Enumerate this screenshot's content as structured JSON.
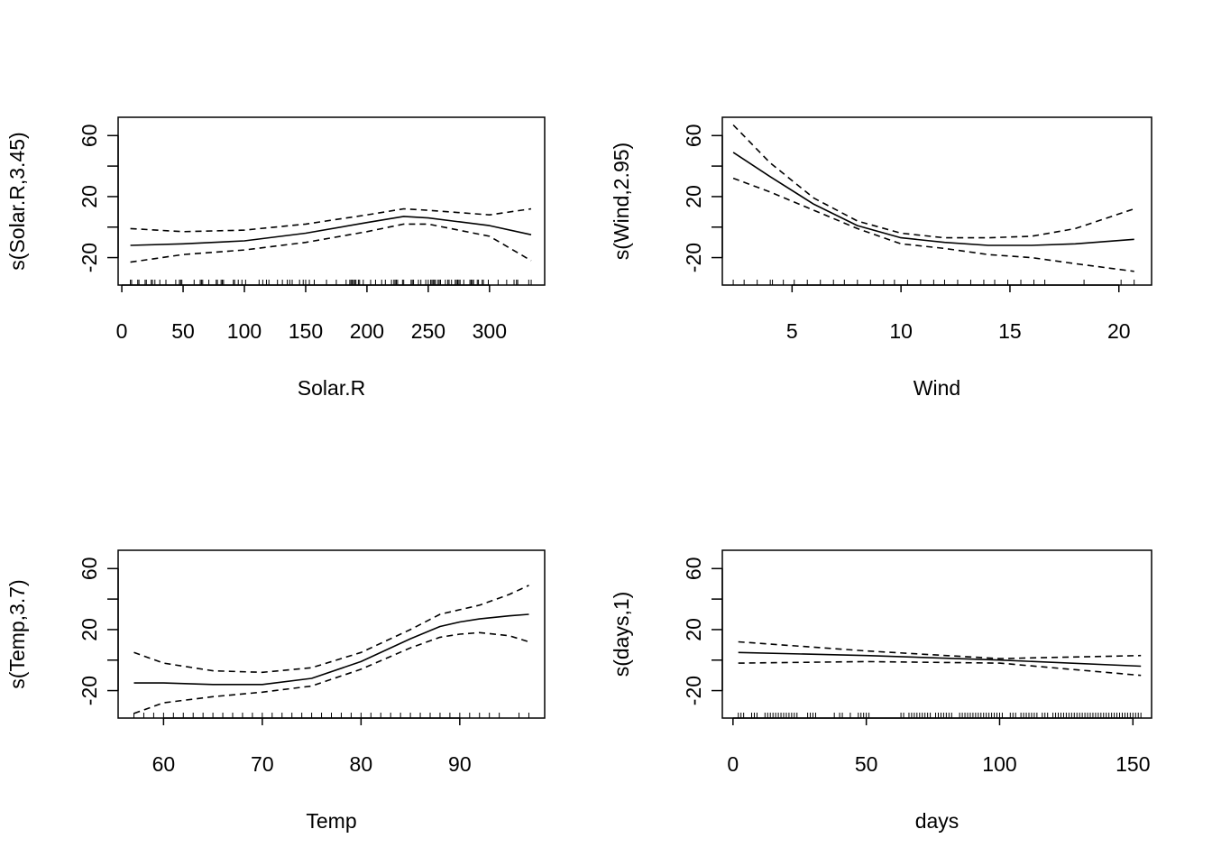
{
  "figure": {
    "background": "#ffffff",
    "line_color": "#000000"
  },
  "chart_data": [
    {
      "type": "line",
      "xlabel": "Solar.R",
      "ylabel": "s(Solar.R,3.45)",
      "xlim": [
        -3,
        345
      ],
      "ylim": [
        -38,
        72
      ],
      "xticks": [
        0,
        50,
        100,
        150,
        200,
        250,
        300
      ],
      "yticks": [
        -20,
        20,
        60
      ],
      "grid": false,
      "series": [
        {
          "style": "solid",
          "x": [
            7,
            50,
            100,
            150,
            200,
            230,
            250,
            300,
            334
          ],
          "y": [
            -12,
            -11,
            -9,
            -4,
            3,
            7,
            6,
            1,
            -5
          ]
        },
        {
          "style": "dashed",
          "x": [
            7,
            50,
            100,
            150,
            200,
            230,
            250,
            300,
            334
          ],
          "y": [
            -1,
            -3,
            -2,
            2,
            8,
            12,
            11,
            8,
            12
          ]
        },
        {
          "style": "dashed",
          "x": [
            7,
            50,
            100,
            150,
            200,
            230,
            250,
            300,
            334
          ],
          "y": [
            -23,
            -18,
            -15,
            -10,
            -3,
            2,
            2,
            -6,
            -22
          ]
        }
      ],
      "rug": [
        7,
        8,
        13,
        14,
        19,
        20,
        24,
        25,
        27,
        31,
        36,
        44,
        47,
        48,
        49,
        59,
        64,
        65,
        66,
        71,
        77,
        78,
        81,
        82,
        83,
        91,
        92,
        95,
        98,
        101,
        112,
        115,
        118,
        120,
        127,
        131,
        135,
        137,
        139,
        145,
        148,
        150,
        153,
        157,
        167,
        175,
        183,
        186,
        187,
        188,
        189,
        190,
        191,
        193,
        194,
        197,
        203,
        207,
        212,
        215,
        220,
        222,
        223,
        224,
        225,
        229,
        230,
        236,
        237,
        238,
        242,
        244,
        248,
        250,
        252,
        253,
        254,
        255,
        256,
        258,
        259,
        260,
        264,
        266,
        267,
        269,
        272,
        273,
        274,
        275,
        276,
        279,
        284,
        285,
        286,
        287,
        290,
        291,
        294,
        295,
        299,
        307,
        314,
        320,
        322,
        323,
        332,
        334
      ]
    },
    {
      "type": "line",
      "xlabel": "Wind",
      "ylabel": "s(Wind,2.95)",
      "xlim": [
        1.8,
        21.5
      ],
      "ylim": [
        -38,
        72
      ],
      "xticks": [
        5,
        10,
        15,
        20
      ],
      "yticks": [
        -20,
        20,
        60
      ],
      "grid": false,
      "series": [
        {
          "style": "solid",
          "x": [
            2.3,
            4,
            6,
            8,
            10,
            12,
            14,
            16,
            18,
            20.7
          ],
          "y": [
            49,
            33,
            15,
            1,
            -7,
            -10,
            -12,
            -12,
            -11,
            -8
          ]
        },
        {
          "style": "dashed",
          "x": [
            2.3,
            4,
            6,
            8,
            10,
            12,
            14,
            16,
            18,
            20.7
          ],
          "y": [
            67,
            42,
            19,
            4,
            -4,
            -7,
            -7,
            -6,
            -1,
            12
          ]
        },
        {
          "style": "dashed",
          "x": [
            2.3,
            4,
            6,
            8,
            10,
            12,
            14,
            16,
            18,
            20.7
          ],
          "y": [
            32,
            23,
            11,
            -1,
            -11,
            -14,
            -18,
            -20,
            -24,
            -29
          ]
        }
      ],
      "rug": [
        2.3,
        2.8,
        3.4,
        4.0,
        4.1,
        4.6,
        5.1,
        5.7,
        6.3,
        6.9,
        7.4,
        8.0,
        8.6,
        9.2,
        9.7,
        10.3,
        10.9,
        11.5,
        12.0,
        12.6,
        13.2,
        13.8,
        14.3,
        14.9,
        15.5,
        16.1,
        16.6,
        18.4,
        20.1,
        20.7
      ]
    },
    {
      "type": "line",
      "xlabel": "Temp",
      "ylabel": "s(Temp,3.7)",
      "xlim": [
        55.4,
        98.6
      ],
      "ylim": [
        -38,
        72
      ],
      "xticks": [
        60,
        70,
        80,
        90
      ],
      "yticks": [
        -20,
        20,
        60
      ],
      "grid": false,
      "series": [
        {
          "style": "solid",
          "x": [
            57,
            60,
            65,
            70,
            75,
            80,
            85,
            88,
            90,
            92,
            95,
            97
          ],
          "y": [
            -15,
            -15,
            -16,
            -16,
            -12,
            -1,
            14,
            22,
            25,
            27,
            29,
            30
          ]
        },
        {
          "style": "dashed",
          "x": [
            57,
            60,
            65,
            70,
            75,
            80,
            85,
            88,
            90,
            92,
            95,
            97
          ],
          "y": [
            5,
            -2,
            -7,
            -8,
            -5,
            5,
            20,
            30,
            33,
            36,
            43,
            49
          ]
        },
        {
          "style": "dashed",
          "x": [
            57,
            60,
            65,
            70,
            75,
            80,
            85,
            88,
            90,
            92,
            95,
            97
          ],
          "y": [
            -35,
            -28,
            -24,
            -21,
            -17,
            -6,
            8,
            15,
            17,
            18,
            16,
            12
          ]
        }
      ],
      "rug": [
        57,
        58,
        59,
        60,
        61,
        62,
        63,
        64,
        65,
        66,
        67,
        68,
        69,
        70,
        71,
        72,
        73,
        74,
        75,
        76,
        77,
        78,
        79,
        80,
        81,
        82,
        83,
        84,
        85,
        86,
        87,
        88,
        89,
        90,
        91,
        92,
        93,
        94,
        96,
        97
      ]
    },
    {
      "type": "line",
      "xlabel": "days",
      "ylabel": "s(days,1)",
      "xlim": [
        -4,
        157
      ],
      "ylim": [
        -38,
        72
      ],
      "xticks": [
        0,
        50,
        100,
        150
      ],
      "yticks": [
        -20,
        20,
        60
      ],
      "grid": false,
      "series": [
        {
          "style": "solid",
          "x": [
            2,
            50,
            100,
            153
          ],
          "y": [
            5,
            3,
            0,
            -4
          ]
        },
        {
          "style": "dashed",
          "x": [
            2,
            50,
            100,
            153
          ],
          "y": [
            12,
            6,
            1,
            3
          ]
        },
        {
          "style": "dashed",
          "x": [
            2,
            50,
            100,
            153
          ],
          "y": [
            -2,
            -1,
            -2,
            -10
          ]
        }
      ],
      "rug": [
        2,
        3,
        4,
        7,
        8,
        9,
        12,
        13,
        14,
        15,
        16,
        17,
        18,
        19,
        20,
        21,
        22,
        23,
        24,
        28,
        29,
        30,
        31,
        38,
        40,
        41,
        44,
        47,
        48,
        49,
        50,
        51,
        63,
        64,
        66,
        67,
        68,
        69,
        70,
        71,
        72,
        73,
        74,
        76,
        77,
        78,
        79,
        80,
        81,
        82,
        85,
        86,
        87,
        88,
        89,
        90,
        91,
        92,
        93,
        94,
        95,
        96,
        97,
        98,
        99,
        100,
        101,
        104,
        105,
        106,
        108,
        109,
        110,
        111,
        112,
        113,
        114,
        116,
        117,
        118,
        120,
        121,
        122,
        123,
        124,
        125,
        126,
        127,
        128,
        129,
        130,
        131,
        132,
        133,
        134,
        135,
        136,
        137,
        138,
        139,
        140,
        141,
        142,
        143,
        144,
        145,
        146,
        147,
        148,
        149,
        150,
        151,
        152,
        153
      ]
    }
  ]
}
